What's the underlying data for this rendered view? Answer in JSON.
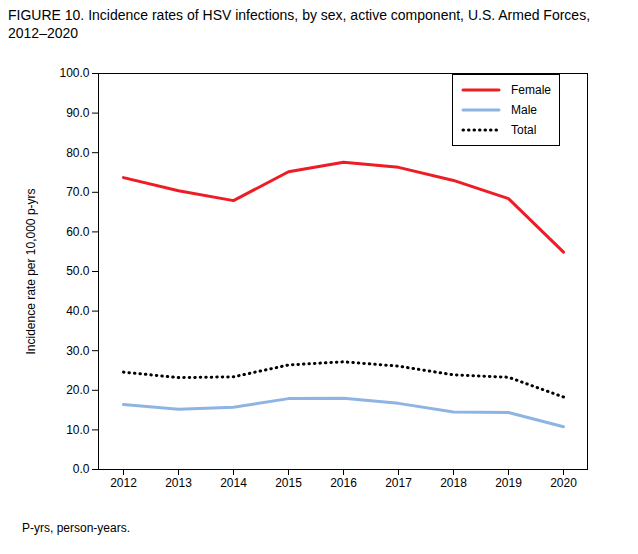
{
  "chart_data": {
    "type": "line",
    "title": "FIGURE 10. Incidence rates of HSV infections, by sex, active component, U.S. Armed Forces, 2012–2020",
    "y_label": "Incidence rate per 10,000 p-yrs",
    "caption": "P-yrs, person-years.",
    "categories": [
      "2012",
      "2013",
      "2014",
      "2015",
      "2016",
      "2017",
      "2018",
      "2019",
      "2020"
    ],
    "series": [
      {
        "name": "Female",
        "color": "#ee1c25",
        "line_style": "solid",
        "values": [
          73.7,
          70.4,
          67.9,
          75.2,
          77.6,
          76.3,
          73.0,
          68.4,
          54.9
        ]
      },
      {
        "name": "Male",
        "color": "#8eb4e3",
        "line_style": "solid",
        "values": [
          16.4,
          15.2,
          15.7,
          17.9,
          18.0,
          16.7,
          14.5,
          14.4,
          10.8
        ]
      },
      {
        "name": "Total",
        "color": "#000000",
        "line_style": "dotted",
        "values": [
          24.6,
          23.2,
          23.4,
          26.4,
          27.2,
          26.1,
          23.9,
          23.3,
          18.3
        ]
      }
    ],
    "ylim": [
      0,
      100
    ],
    "yticks": [
      {
        "value": 0,
        "label": "0.0"
      },
      {
        "value": 10,
        "label": "10.0"
      },
      {
        "value": 20,
        "label": "20.0"
      },
      {
        "value": 30,
        "label": "30.0"
      },
      {
        "value": 40,
        "label": "40.0"
      },
      {
        "value": 50,
        "label": "50.0"
      },
      {
        "value": 60,
        "label": "60.0"
      },
      {
        "value": 70,
        "label": "70.0"
      },
      {
        "value": 80,
        "label": "80.0"
      },
      {
        "value": 90,
        "label": "90.0"
      },
      {
        "value": 100,
        "label": "100.0"
      }
    ],
    "legend": "upper right",
    "grid": false
  }
}
